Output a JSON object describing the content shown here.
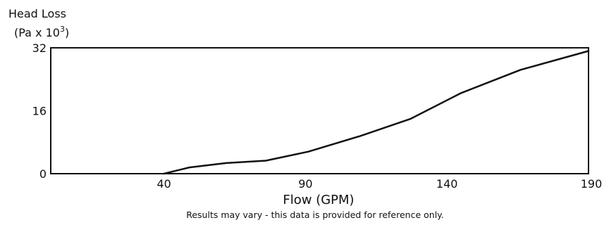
{
  "chart_data": {
    "type": "line",
    "ylabel": "Head Loss",
    "yunit_prefix": "(Pa x 10",
    "yunit_exponent": "3",
    "yunit_suffix": ")",
    "xlabel": "Flow (GPM)",
    "note": "Results may vary - this data is provided for reference only.",
    "xlim": [
      0,
      190
    ],
    "ylim": [
      0,
      32
    ],
    "xticks": [
      40,
      90,
      140,
      190
    ],
    "yticks": [
      0,
      16,
      32
    ],
    "grid": false,
    "legend": "none",
    "line_color": "#111111",
    "series": [
      {
        "x": [
          40,
          49,
          62,
          76,
          91,
          109,
          127,
          145,
          166,
          190
        ],
        "y": [
          0,
          1.6,
          2.7,
          3.3,
          5.6,
          9.5,
          13.9,
          20.5,
          26.4,
          31.2
        ]
      }
    ]
  }
}
